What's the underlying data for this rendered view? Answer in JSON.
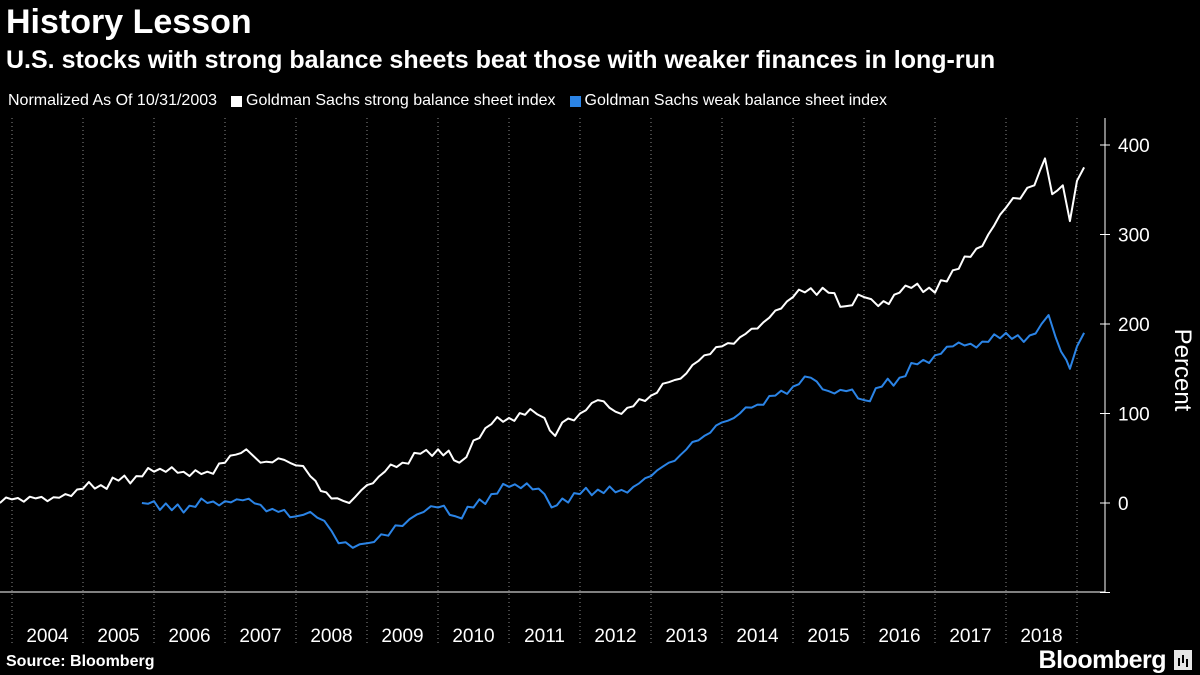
{
  "title": "History Lesson",
  "subtitle": "U.S. stocks with strong balance sheets beat those with weaker finances in long-run",
  "legend": {
    "note": "Normalized As Of 10/31/2003",
    "items": [
      {
        "label": "Goldman Sachs strong balance sheet index",
        "color": "#ffffff"
      },
      {
        "label": "Goldman Sachs weak balance sheet index",
        "color": "#2b84e6"
      }
    ]
  },
  "source": "Source:  Bloomberg",
  "brand": "Bloomberg",
  "chart_data": {
    "type": "line",
    "title": "History Lesson",
    "subtitle": "U.S. stocks with strong balance sheets beat those with weaker finances in long-run",
    "xlabel": "",
    "ylabel": "Percent",
    "x_range": [
      2003.83,
      2019.2
    ],
    "ylim": [
      -100,
      430
    ],
    "yticks": [
      0,
      100,
      200,
      300,
      400
    ],
    "ytick_labels": [
      "0",
      "100",
      "200",
      "300",
      "400"
    ],
    "xticks": [
      "2004",
      "2005",
      "2006",
      "2007",
      "2008",
      "2009",
      "2010",
      "2011",
      "2012",
      "2013",
      "2014",
      "2015",
      "2016",
      "2017",
      "2018"
    ],
    "legend_position": "top-left",
    "grid": "vertical dotted year separators",
    "series": [
      {
        "name": "Goldman Sachs strong balance sheet index",
        "color": "#ffffff",
        "points": [
          [
            2003.83,
            0
          ],
          [
            2004.0,
            4
          ],
          [
            2004.25,
            7
          ],
          [
            2004.5,
            2
          ],
          [
            2004.75,
            10
          ],
          [
            2005.0,
            16
          ],
          [
            2005.25,
            20
          ],
          [
            2005.5,
            25
          ],
          [
            2005.75,
            30
          ],
          [
            2006.0,
            35
          ],
          [
            2006.25,
            40
          ],
          [
            2006.5,
            30
          ],
          [
            2006.75,
            35
          ],
          [
            2007.0,
            45
          ],
          [
            2007.3,
            60
          ],
          [
            2007.5,
            45
          ],
          [
            2007.75,
            50
          ],
          [
            2008.0,
            42
          ],
          [
            2008.2,
            30
          ],
          [
            2008.5,
            5
          ],
          [
            2008.75,
            0
          ],
          [
            2009.0,
            20
          ],
          [
            2009.25,
            35
          ],
          [
            2009.5,
            45
          ],
          [
            2009.75,
            55
          ],
          [
            2010.0,
            60
          ],
          [
            2010.3,
            45
          ],
          [
            2010.5,
            70
          ],
          [
            2010.75,
            88
          ],
          [
            2011.0,
            95
          ],
          [
            2011.3,
            105
          ],
          [
            2011.5,
            95
          ],
          [
            2011.65,
            75
          ],
          [
            2011.75,
            90
          ],
          [
            2012.0,
            100
          ],
          [
            2012.25,
            115
          ],
          [
            2012.5,
            102
          ],
          [
            2012.75,
            108
          ],
          [
            2013.0,
            120
          ],
          [
            2013.25,
            135
          ],
          [
            2013.5,
            145
          ],
          [
            2013.75,
            165
          ],
          [
            2014.0,
            175
          ],
          [
            2014.25,
            185
          ],
          [
            2014.5,
            195
          ],
          [
            2014.75,
            215
          ],
          [
            2015.0,
            230
          ],
          [
            2015.25,
            240
          ],
          [
            2015.5,
            235
          ],
          [
            2015.75,
            220
          ],
          [
            2016.0,
            230
          ],
          [
            2016.2,
            220
          ],
          [
            2016.5,
            235
          ],
          [
            2016.75,
            245
          ],
          [
            2017.0,
            235
          ],
          [
            2017.25,
            260
          ],
          [
            2017.5,
            275
          ],
          [
            2017.75,
            300
          ],
          [
            2018.0,
            330
          ],
          [
            2018.2,
            340
          ],
          [
            2018.4,
            355
          ],
          [
            2018.55,
            385
          ],
          [
            2018.65,
            345
          ],
          [
            2018.8,
            355
          ],
          [
            2018.9,
            315
          ],
          [
            2019.0,
            360
          ],
          [
            2019.1,
            375
          ]
        ]
      },
      {
        "name": "Goldman Sachs weak balance sheet index",
        "color": "#2b84e6",
        "points": [
          [
            2005.83,
            0
          ],
          [
            2006.0,
            2
          ],
          [
            2006.25,
            -8
          ],
          [
            2006.5,
            -3
          ],
          [
            2006.75,
            0
          ],
          [
            2007.0,
            2
          ],
          [
            2007.25,
            3
          ],
          [
            2007.5,
            -2
          ],
          [
            2007.75,
            -10
          ],
          [
            2008.0,
            -15
          ],
          [
            2008.2,
            -10
          ],
          [
            2008.4,
            -20
          ],
          [
            2008.6,
            -45
          ],
          [
            2008.8,
            -50
          ],
          [
            2009.0,
            -45
          ],
          [
            2009.2,
            -35
          ],
          [
            2009.4,
            -25
          ],
          [
            2009.6,
            -18
          ],
          [
            2009.8,
            -10
          ],
          [
            2010.0,
            -5
          ],
          [
            2010.25,
            -15
          ],
          [
            2010.5,
            -5
          ],
          [
            2010.75,
            10
          ],
          [
            2011.0,
            18
          ],
          [
            2011.25,
            22
          ],
          [
            2011.5,
            10
          ],
          [
            2011.6,
            -5
          ],
          [
            2011.75,
            5
          ],
          [
            2012.0,
            10
          ],
          [
            2012.25,
            15
          ],
          [
            2012.5,
            12
          ],
          [
            2012.75,
            18
          ],
          [
            2013.0,
            30
          ],
          [
            2013.25,
            45
          ],
          [
            2013.5,
            60
          ],
          [
            2013.75,
            75
          ],
          [
            2014.0,
            90
          ],
          [
            2014.25,
            100
          ],
          [
            2014.5,
            110
          ],
          [
            2014.75,
            120
          ],
          [
            2015.0,
            130
          ],
          [
            2015.25,
            140
          ],
          [
            2015.5,
            125
          ],
          [
            2015.75,
            125
          ],
          [
            2016.0,
            115
          ],
          [
            2016.25,
            130
          ],
          [
            2016.5,
            140
          ],
          [
            2016.75,
            155
          ],
          [
            2017.0,
            165
          ],
          [
            2017.25,
            175
          ],
          [
            2017.5,
            178
          ],
          [
            2017.75,
            180
          ],
          [
            2018.0,
            190
          ],
          [
            2018.25,
            180
          ],
          [
            2018.5,
            200
          ],
          [
            2018.6,
            210
          ],
          [
            2018.7,
            185
          ],
          [
            2018.85,
            160
          ],
          [
            2018.9,
            150
          ],
          [
            2019.0,
            175
          ],
          [
            2019.1,
            190
          ]
        ]
      }
    ]
  }
}
